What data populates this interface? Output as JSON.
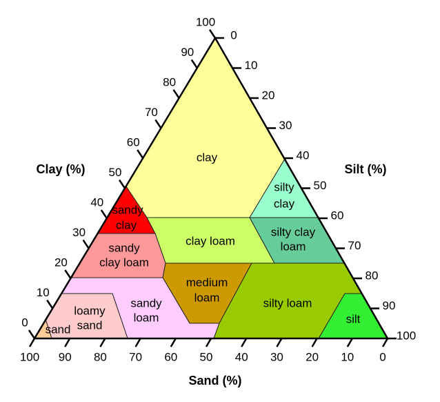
{
  "axes": {
    "clay": {
      "title": "Clay (%)",
      "ticks": [
        0,
        10,
        20,
        30,
        40,
        50,
        60,
        70,
        80,
        90,
        100
      ]
    },
    "silt": {
      "title": "Silt (%)",
      "ticks": [
        0,
        10,
        20,
        30,
        40,
        50,
        60,
        70,
        80,
        90,
        100
      ]
    },
    "sand": {
      "title": "Sand (%)",
      "ticks": [
        100,
        90,
        80,
        70,
        60,
        50,
        40,
        30,
        20,
        10,
        0
      ]
    }
  },
  "regions": [
    {
      "lines": [
        "clay"
      ]
    },
    {
      "lines": [
        "silty",
        "clay"
      ]
    },
    {
      "lines": [
        "sandy",
        "clay"
      ]
    },
    {
      "lines": [
        "clay loam"
      ]
    },
    {
      "lines": [
        "silty clay",
        "loam"
      ]
    },
    {
      "lines": [
        "sandy",
        "clay loam"
      ]
    },
    {
      "lines": [
        "medium",
        "loam"
      ]
    },
    {
      "lines": [
        "sandy",
        "loam"
      ]
    },
    {
      "lines": [
        "loamy",
        "sand"
      ]
    },
    {
      "lines": [
        "silty loam"
      ]
    },
    {
      "lines": [
        "silt"
      ]
    },
    {
      "lines": [
        "sand"
      ]
    }
  ]
}
